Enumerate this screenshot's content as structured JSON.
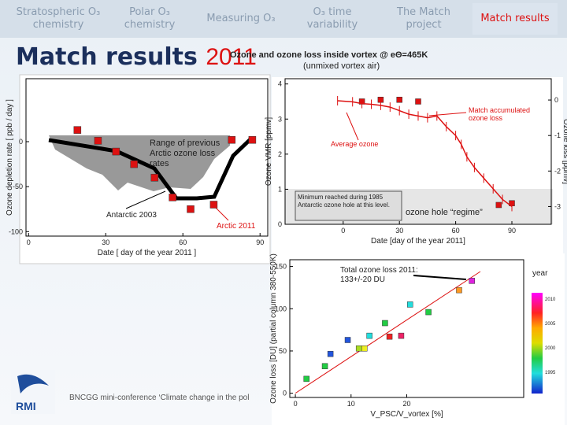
{
  "nav": {
    "items": [
      "Stratospheric O₃ chemistry",
      "Polar O₃ chemistry",
      "Measuring O₃",
      "O₃ time variability",
      "The Match project",
      "Match results"
    ]
  },
  "title": {
    "text": "Match results",
    "year": "2011"
  },
  "left_chart": {
    "ylabel": "Ozone depletion rate [ ppb / day ]",
    "xlabel": "Date [ day of the year 2011 ]",
    "xlim": [
      -1,
      93
    ],
    "ylim": [
      -105,
      70
    ],
    "xticks": [
      0,
      30,
      60,
      90
    ],
    "yticks": [
      0,
      -50,
      -100
    ],
    "color": "#dd1111",
    "x": [
      19,
      27,
      34,
      41,
      49,
      56,
      63,
      72,
      79,
      87
    ],
    "values": [
      13,
      1,
      -11,
      -25,
      -40,
      -62,
      -75,
      -70,
      2,
      2
    ],
    "annotations": [
      "Range of previous Arctic ozone loss rates",
      "Antarctic 2003",
      "Arctic 2011"
    ]
  },
  "right_chart": {
    "title": "Ozone and ozone loss inside vortex @ eΘ=465K",
    "subtitle": "(unmixed vortex air)",
    "ylabel": "Ozone VMR [ppmv]",
    "y2label": "Ozone loss [ppmv]",
    "xlabel": "Date [day of the year 2011]",
    "xlim": [
      -31,
      111
    ],
    "ylim": [
      0,
      4.15
    ],
    "y2lim": [
      -3.5,
      0.6
    ],
    "xticks": [
      0,
      30,
      60,
      90
    ],
    "yticks": [
      0,
      1,
      2,
      3,
      4
    ],
    "y2ticks": [
      0,
      -1,
      -2,
      -3
    ],
    "series": [
      {
        "name": "Average ozone",
        "color": "#dd1111",
        "x": [
          10,
          20,
          30,
          40,
          83,
          90
        ],
        "values": [
          3.5,
          3.55,
          3.55,
          3.5,
          0.55,
          0.6
        ]
      },
      {
        "name": "Match accumulated ozone loss",
        "color": "#dd1111",
        "axis": "y2",
        "x": [
          -3,
          5,
          10,
          15,
          20,
          25,
          30,
          35,
          40,
          45,
          50,
          55,
          60,
          63,
          66,
          70,
          75,
          80,
          85,
          90
        ],
        "values": [
          -0.02,
          -0.05,
          -0.1,
          -0.12,
          -0.15,
          -0.2,
          -0.3,
          -0.4,
          -0.45,
          -0.5,
          -0.45,
          -0.75,
          -1.0,
          -1.25,
          -1.6,
          -1.9,
          -2.2,
          -2.5,
          -2.8,
          -3.0
        ]
      }
    ],
    "annotations": [
      "Minimum reached during 1985 Antarctic ozone hole at this level.",
      "ozone hole “regime”"
    ]
  },
  "scatter_chart": {
    "ylabel": "Ozone loss [DU] (partial column 380-550K)",
    "xlabel": "V_PSC/V_vortex [%]",
    "annotation": "Total ozone loss 2011: 133+/-20 DU",
    "xlim": [
      -1,
      41
    ],
    "ylim": [
      -5,
      158
    ],
    "xticks": [
      0,
      10,
      20
    ],
    "yticks": [
      0,
      50,
      100,
      150
    ],
    "fit_color": "#dd1111",
    "points": {
      "x": [
        2,
        5.3,
        6.3,
        11.4,
        12.4,
        9.4,
        13.3,
        16.1,
        16.9,
        19,
        20.6,
        23.9,
        29.4,
        31.7
      ],
      "values": [
        17,
        32,
        46.5,
        53,
        53,
        63,
        68,
        83,
        67,
        68,
        105,
        96,
        122,
        133
      ],
      "colors": [
        "#22cc44",
        "#22cc44",
        "#2255dd",
        "#aadd22",
        "#eeee22",
        "#2255dd",
        "#22dddd",
        "#22cc44",
        "#ee2222",
        "#ee2266",
        "#22dddd",
        "#22cc44",
        "#ff9922",
        "#dd22dd"
      ]
    },
    "colorbar": {
      "title": "year",
      "labels": [
        "2010",
        "2005",
        "2000",
        "1995"
      ]
    }
  },
  "footer": {
    "text": "BNCGG mini-conference ‘Climate change in the pol",
    "logo": "RMI"
  }
}
